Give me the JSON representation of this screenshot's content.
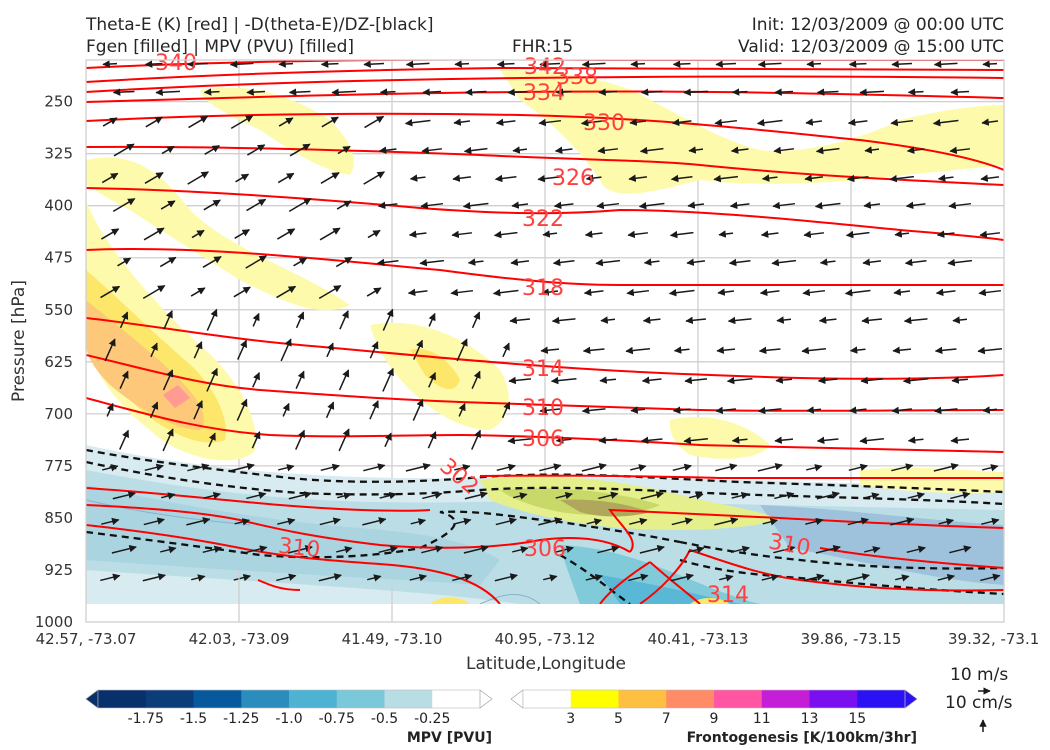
{
  "header": {
    "title_line1": "Theta-E (K) [red] | -D(theta-E)/DZ-[black]",
    "title_line2": "Fgen [filled] | MPV (PVU) [filled]",
    "fhr": "FHR:15",
    "init": "Init: 12/03/2009 @ 00:00 UTC",
    "valid": "Valid: 12/03/2009 @ 15:00 UTC"
  },
  "chart_data": {
    "type": "cross-section",
    "xlabel": "Latitude,Longitude",
    "ylabel": "Pressure [hPa]",
    "x_ticks": [
      "42.57, -73.07",
      "42.03, -73.09",
      "41.49, -73.10",
      "40.95, -73.12",
      "40.41, -73.13",
      "39.86, -73.15",
      "39.32, -73.1"
    ],
    "y_ticks": [
      250,
      325,
      400,
      475,
      550,
      625,
      700,
      775,
      850,
      925,
      1000
    ],
    "ylim": [
      1000,
      190
    ],
    "grid": true,
    "theta_e_labels": [
      "340",
      "342",
      "338",
      "334",
      "330",
      "326",
      "322",
      "318",
      "314",
      "310",
      "306",
      "302",
      "310",
      "306",
      "310",
      "314"
    ],
    "wind_reference": {
      "horizontal": "10 m/s",
      "vertical": "10 cm/s"
    }
  },
  "colorbars": {
    "mpv": {
      "label": "MPV [PVU]",
      "ticks": [
        "-1.75",
        "-1.5",
        "-1.25",
        "-1.0",
        "-0.75",
        "-0.5",
        "-0.25"
      ],
      "colors": [
        "#08306b",
        "#0b3d78",
        "#08589e",
        "#2b8cbe",
        "#4eb3d3",
        "#7bc8d8",
        "#b9dde5",
        "#ffffff"
      ]
    },
    "fgen": {
      "label": "Frontogenesis [K/100km/3hr]",
      "ticks": [
        "3",
        "5",
        "7",
        "9",
        "11",
        "13",
        "15"
      ],
      "colors": [
        "#ffffff",
        "#ffff00",
        "#ffbf40",
        "#ff8c66",
        "#ff55a3",
        "#c41fd6",
        "#7a10f0",
        "#2b12f5"
      ]
    }
  }
}
